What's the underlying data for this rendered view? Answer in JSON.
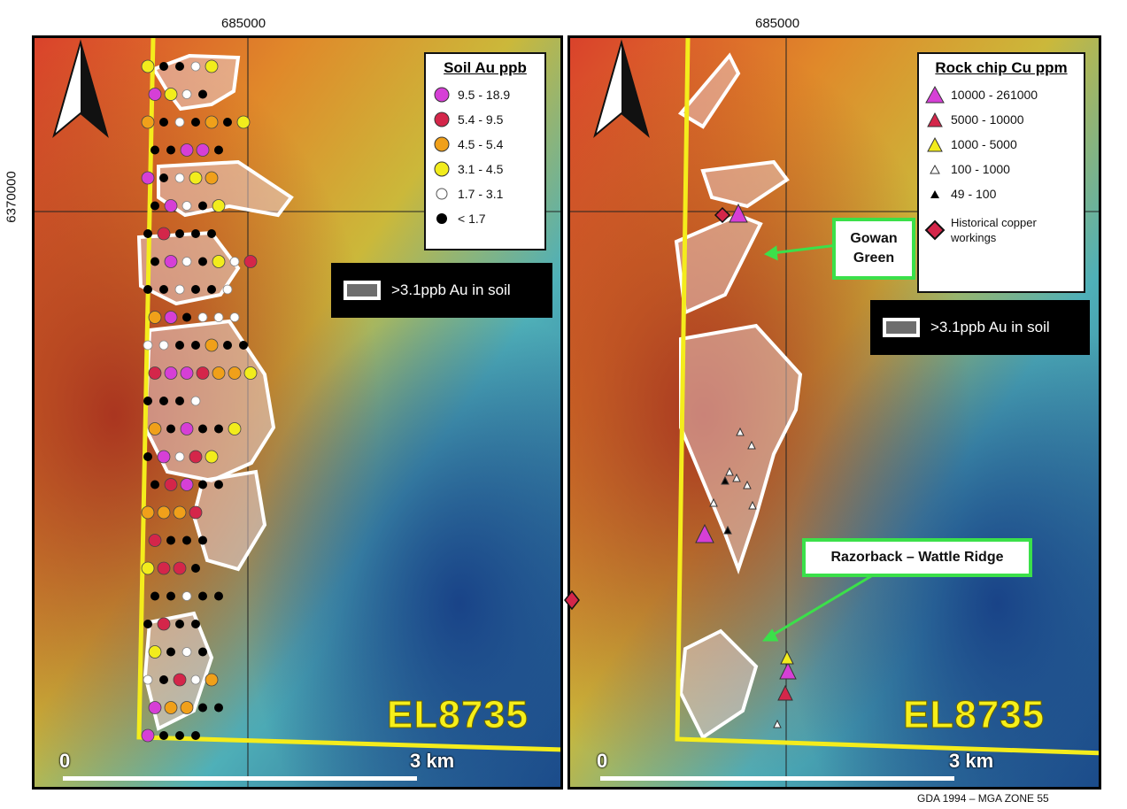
{
  "coords": {
    "easting": "685000",
    "northing": "6370000"
  },
  "left_panel": {
    "legend": {
      "title": "Soil Au ppb",
      "items": [
        {
          "label": "9.5 - 18.9",
          "color": "#d63fd6"
        },
        {
          "label": "5.4 - 9.5",
          "color": "#d4264a"
        },
        {
          "label": "4.5 - 5.4",
          "color": "#f0a01a"
        },
        {
          "label": "3.1 - 4.5",
          "color": "#f2ec1c"
        },
        {
          "label": "1.7 - 3.1",
          "color": "#ffffff"
        },
        {
          "label": "< 1.7",
          "color": "#000000"
        }
      ]
    },
    "shade_key": ">3.1ppb Au in soil",
    "tenement": "EL8735",
    "scale": {
      "zero": "0",
      "end": "3 km"
    }
  },
  "right_panel": {
    "legend": {
      "title": "Rock chip Cu ppm",
      "items": [
        {
          "label": "10000 - 261000",
          "color": "#d63fd6",
          "symbol": "triangle-large"
        },
        {
          "label": "5000 - 10000",
          "color": "#d4264a",
          "symbol": "triangle-medium"
        },
        {
          "label": "1000 - 5000",
          "color": "#f2ec1c",
          "symbol": "triangle-medium"
        },
        {
          "label": "100 - 1000",
          "color": "#ffffff",
          "symbol": "triangle-small"
        },
        {
          "label": "49 - 100",
          "color": "#000000",
          "symbol": "triangle-small"
        }
      ],
      "historical": {
        "label_line1": "Historical copper",
        "label_line2": "workings",
        "color": "#d4264a",
        "symbol": "diamond"
      }
    },
    "shade_key": ">3.1ppb Au in soil",
    "callouts": {
      "gowan_line1": "Gowan",
      "gowan_line2": "Green",
      "razorback": "Razorback – Wattle Ridge"
    },
    "tenement": "EL8735",
    "scale": {
      "zero": "0",
      "end": "3 km"
    }
  },
  "footer": "GDA 1994 – MGA ZONE  55",
  "colors": {
    "tenement_boundary": "#f4ec1c",
    "callout_border": "#3be04a",
    "arrow": "#3be04a"
  }
}
